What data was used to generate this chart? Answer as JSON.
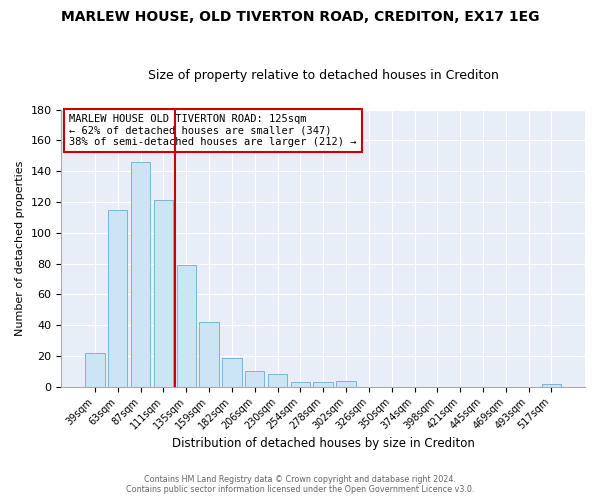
{
  "title": "MARLEW HOUSE, OLD TIVERTON ROAD, CREDITON, EX17 1EG",
  "subtitle": "Size of property relative to detached houses in Crediton",
  "xlabel": "Distribution of detached houses by size in Crediton",
  "ylabel": "Number of detached properties",
  "bar_labels": [
    "39sqm",
    "63sqm",
    "87sqm",
    "111sqm",
    "135sqm",
    "159sqm",
    "182sqm",
    "206sqm",
    "230sqm",
    "254sqm",
    "278sqm",
    "302sqm",
    "326sqm",
    "350sqm",
    "374sqm",
    "398sqm",
    "421sqm",
    "445sqm",
    "469sqm",
    "493sqm",
    "517sqm"
  ],
  "bar_values": [
    22,
    115,
    146,
    121,
    79,
    42,
    19,
    10,
    8,
    3,
    3,
    4,
    0,
    0,
    0,
    0,
    0,
    0,
    0,
    0,
    2
  ],
  "bar_color": "#cce5f5",
  "bar_edge_color": "#7ab4d8",
  "marker_index": 3,
  "marker_color": "#cc0000",
  "ylim": [
    0,
    180
  ],
  "yticks": [
    0,
    20,
    40,
    60,
    80,
    100,
    120,
    140,
    160,
    180
  ],
  "annotation_title": "MARLEW HOUSE OLD TIVERTON ROAD: 125sqm",
  "annotation_line1": "← 62% of detached houses are smaller (347)",
  "annotation_line2": "38% of semi-detached houses are larger (212) →",
  "footer_line1": "Contains HM Land Registry data © Crown copyright and database right 2024.",
  "footer_line2": "Contains public sector information licensed under the Open Government Licence v3.0.",
  "background_color": "#ffffff",
  "plot_bg_color": "#e8eef8",
  "grid_color": "#ffffff",
  "title_fontsize": 10,
  "subtitle_fontsize": 9
}
